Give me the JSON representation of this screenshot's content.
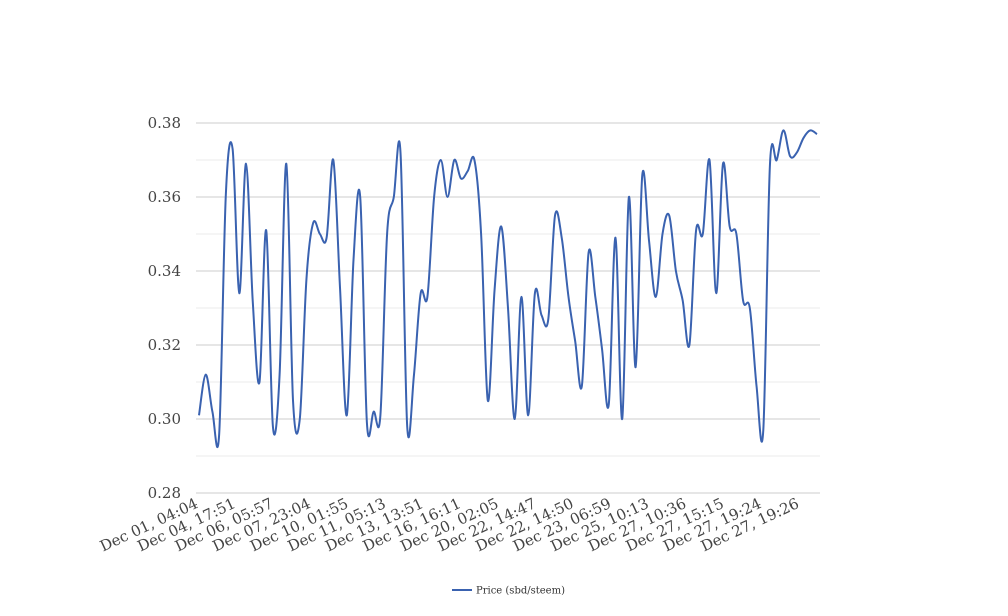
{
  "chart_data": {
    "type": "line",
    "title": "",
    "xlabel": "",
    "ylabel": "",
    "ylim": [
      0.28,
      0.38
    ],
    "yticks": [
      "0.28",
      "0.30",
      "0.32",
      "0.34",
      "0.36",
      "0.38"
    ],
    "grid": true,
    "legend_position": "bottom-center",
    "x_tick_labels": [
      "Dec 01, 04:04",
      "Dec 04, 17:51",
      "Dec 06, 05:57",
      "Dec 07, 23:04",
      "Dec 10, 01:55",
      "Dec 11, 05:13",
      "Dec 13, 13:51",
      "Dec 16, 16:11",
      "Dec 20, 02:05",
      "Dec 22, 14:47",
      "Dec 22, 14:50",
      "Dec 23, 06:59",
      "Dec 25, 10:13",
      "Dec 27, 10:36",
      "Dec 27, 15:15",
      "Dec 27, 19:24",
      "Dec 27, 19:26"
    ],
    "series": [
      {
        "name": "Price (sbd/steem)",
        "color": "#3a62b0",
        "values": [
          0.301,
          0.312,
          0.302,
          0.296,
          0.361,
          0.373,
          0.334,
          0.369,
          0.332,
          0.31,
          0.351,
          0.298,
          0.312,
          0.369,
          0.305,
          0.3,
          0.338,
          0.353,
          0.35,
          0.349,
          0.37,
          0.335,
          0.301,
          0.343,
          0.36,
          0.299,
          0.302,
          0.301,
          0.35,
          0.36,
          0.372,
          0.298,
          0.312,
          0.334,
          0.333,
          0.36,
          0.37,
          0.36,
          0.37,
          0.365,
          0.367,
          0.37,
          0.35,
          0.305,
          0.335,
          0.352,
          0.33,
          0.3,
          0.333,
          0.301,
          0.334,
          0.328,
          0.327,
          0.355,
          0.349,
          0.333,
          0.321,
          0.309,
          0.345,
          0.333,
          0.319,
          0.304,
          0.349,
          0.3,
          0.36,
          0.314,
          0.366,
          0.348,
          0.333,
          0.35,
          0.355,
          0.34,
          0.332,
          0.32,
          0.351,
          0.35,
          0.37,
          0.334,
          0.369,
          0.352,
          0.35,
          0.332,
          0.33,
          0.309,
          0.297,
          0.369,
          0.37,
          0.378,
          0.371,
          0.372,
          0.376,
          0.378,
          0.377
        ]
      }
    ]
  }
}
